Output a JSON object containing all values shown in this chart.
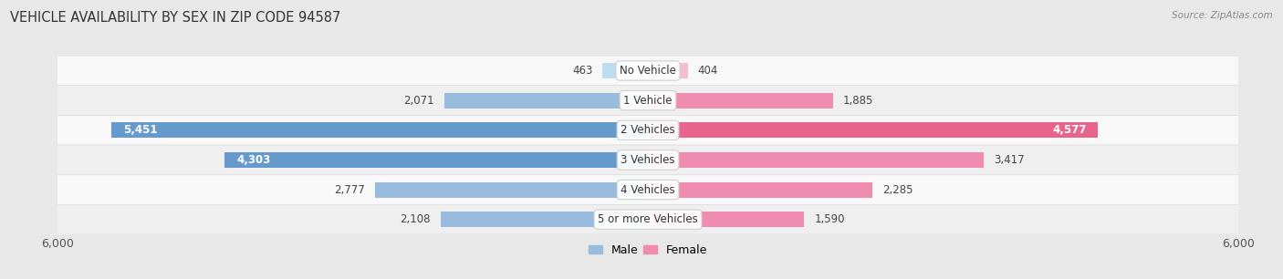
{
  "title": "VEHICLE AVAILABILITY BY SEX IN ZIP CODE 94587",
  "source": "Source: ZipAtlas.com",
  "categories": [
    "No Vehicle",
    "1 Vehicle",
    "2 Vehicles",
    "3 Vehicles",
    "4 Vehicles",
    "5 or more Vehicles"
  ],
  "male_values": [
    463,
    2071,
    5451,
    4303,
    2777,
    2108
  ],
  "female_values": [
    404,
    1885,
    4577,
    3417,
    2285,
    1590
  ],
  "male_color_small": "#aacce8",
  "male_color_large": "#6699cc",
  "female_color_small": "#f5a8c0",
  "female_color_large": "#e8648c",
  "row_colors": [
    "#f8f8f8",
    "#efefef"
  ],
  "background_color": "#e8e8e8",
  "xlim": 6000,
  "bar_height": 0.52,
  "title_fontsize": 10.5,
  "value_fontsize": 8.5,
  "label_fontsize": 8.5,
  "axis_tick_label": "6,000",
  "legend_male": "Male",
  "legend_female": "Female"
}
